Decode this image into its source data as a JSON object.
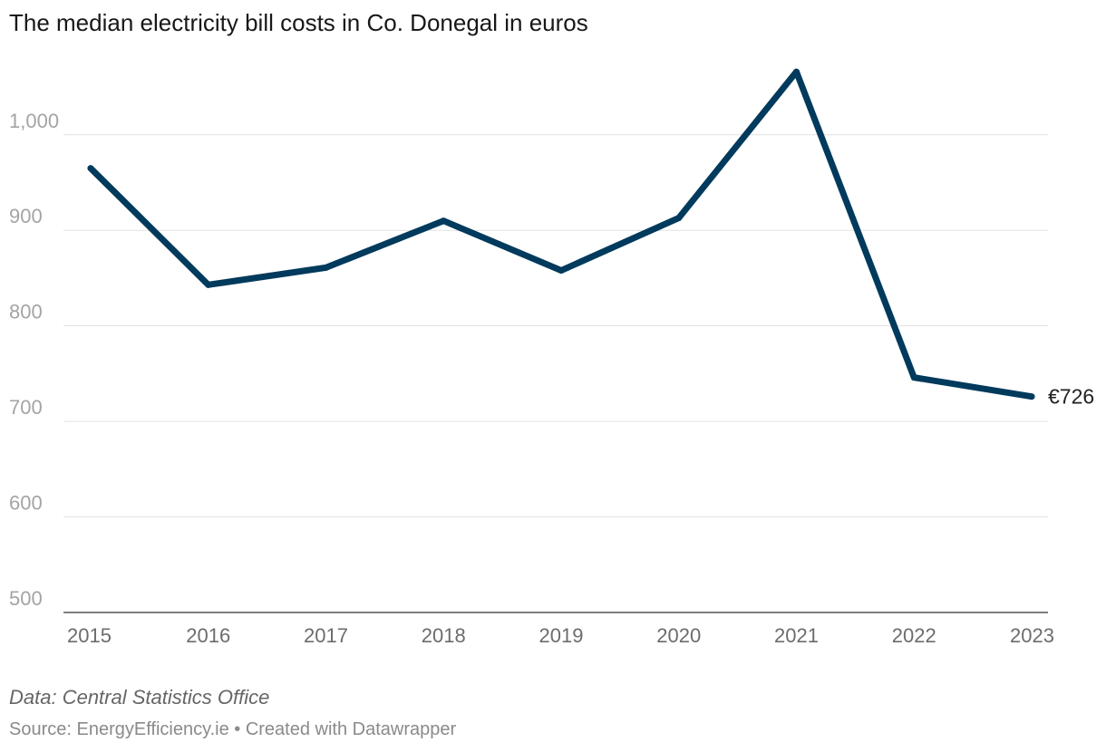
{
  "chart_data": {
    "type": "line",
    "title": "The median electricity bill costs in Co. Donegal in euros",
    "categories": [
      "2015",
      "2016",
      "2017",
      "2018",
      "2019",
      "2020",
      "2021",
      "2022",
      "2023"
    ],
    "series": [
      {
        "name": "Median electricity bill",
        "values": [
          965,
          843,
          861,
          910,
          858,
          913,
          1066,
          746,
          726
        ],
        "color": "#003a5c"
      }
    ],
    "yticks": [
      500,
      600,
      700,
      800,
      900,
      1000
    ],
    "ytick_labels": [
      "500",
      "600",
      "700",
      "800",
      "900",
      "1,000"
    ],
    "ylim": [
      500,
      1070
    ],
    "end_label": "€726",
    "xlabel": "",
    "ylabel": ""
  },
  "footer": {
    "data_note": "Data: Central Statistics Office",
    "source": "Source: EnergyEfficiency.ie • Created with Datawrapper"
  }
}
